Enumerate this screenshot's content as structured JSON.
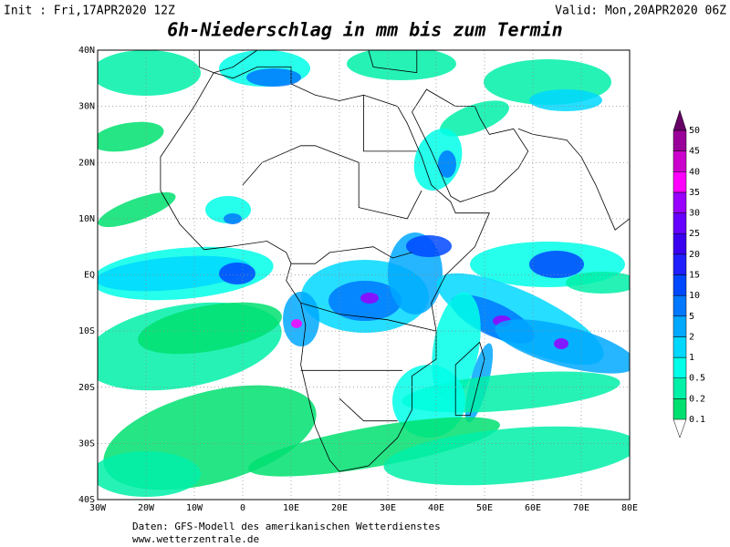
{
  "header": {
    "init": "Init : Fri,17APR2020 12Z",
    "valid": "Valid: Mon,20APR2020 06Z",
    "title": "6h-Niederschlag in mm bis zum Termin"
  },
  "map": {
    "lat_labels": [
      "40N",
      "30N",
      "20N",
      "10N",
      "EQ",
      "10S",
      "20S",
      "30S",
      "40S"
    ],
    "lon_labels": [
      "30W",
      "20W",
      "10W",
      "0",
      "10E",
      "20E",
      "30E",
      "40E",
      "50E",
      "60E",
      "70E",
      "80E"
    ]
  },
  "colorbar": {
    "labels": [
      0.1,
      0.2,
      0.5,
      1,
      2,
      5,
      10,
      15,
      20,
      25,
      30,
      35,
      40,
      45,
      50
    ],
    "colors": [
      "#00e070",
      "#00f0a8",
      "#00ffe8",
      "#00d8ff",
      "#00a8ff",
      "#0078ff",
      "#0048ff",
      "#2020ff",
      "#3a00f0",
      "#6600ff",
      "#9900ff",
      "#ff00ff",
      "#cc00cc",
      "#990099",
      "#660066"
    ]
  },
  "footer": {
    "source": "Daten: GFS-Modell des amerikanischen Wetterdienstes",
    "url": "www.wetterzentrale.de"
  }
}
